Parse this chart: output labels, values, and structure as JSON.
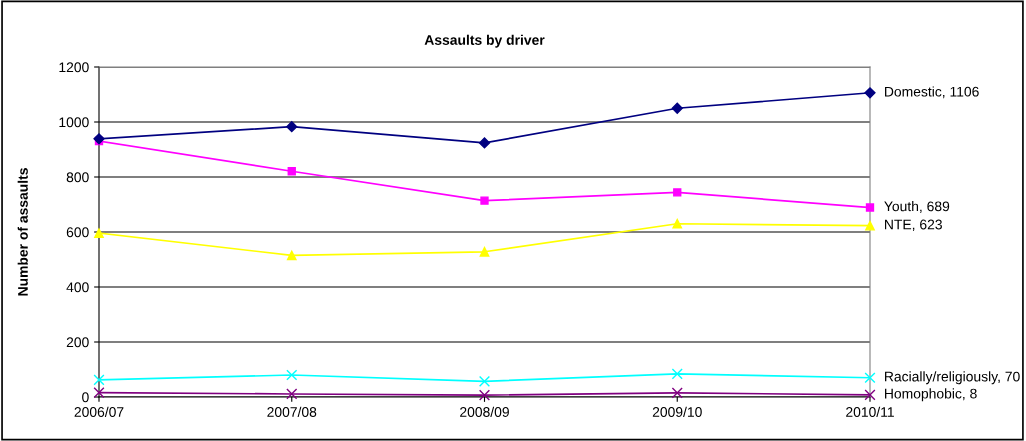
{
  "chart_data": {
    "type": "line",
    "title": "Assaults by driver",
    "ylabel": "Number of assaults",
    "categories": [
      "2006/07",
      "2007/08",
      "2008/09",
      "2009/10",
      "2010/11"
    ],
    "ylim": [
      0,
      1200
    ],
    "yticks": [
      0,
      200,
      400,
      600,
      800,
      1000,
      1200
    ],
    "grid": "y",
    "series": [
      {
        "color": "#000080",
        "marker": "diamond",
        "values": [
          939,
          983,
          924,
          1050,
          1106
        ],
        "value_labels": [
          null,
          null,
          null,
          null,
          "Domestic, 1106"
        ]
      },
      {
        "color": "#ff00ff",
        "marker": "square",
        "values": [
          931,
          821,
          714,
          744,
          689
        ],
        "value_labels": [
          null,
          null,
          null,
          null,
          "Youth, 689"
        ]
      },
      {
        "color": "#ffff00",
        "marker": "triangle",
        "values": [
          596,
          515,
          528,
          630,
          623
        ],
        "value_labels": [
          null,
          null,
          null,
          null,
          "NTE, 623"
        ]
      },
      {
        "color": "#00ffff",
        "marker": "cross",
        "values": [
          62,
          80,
          57,
          84,
          70
        ],
        "value_labels": [
          null,
          null,
          null,
          null,
          "Racially/religiously, 70"
        ]
      },
      {
        "color": "#800080",
        "marker": "cross",
        "values": [
          16,
          11,
          7,
          15,
          8
        ],
        "value_labels": [
          null,
          null,
          null,
          null,
          "Homophobic, 8"
        ]
      }
    ]
  }
}
